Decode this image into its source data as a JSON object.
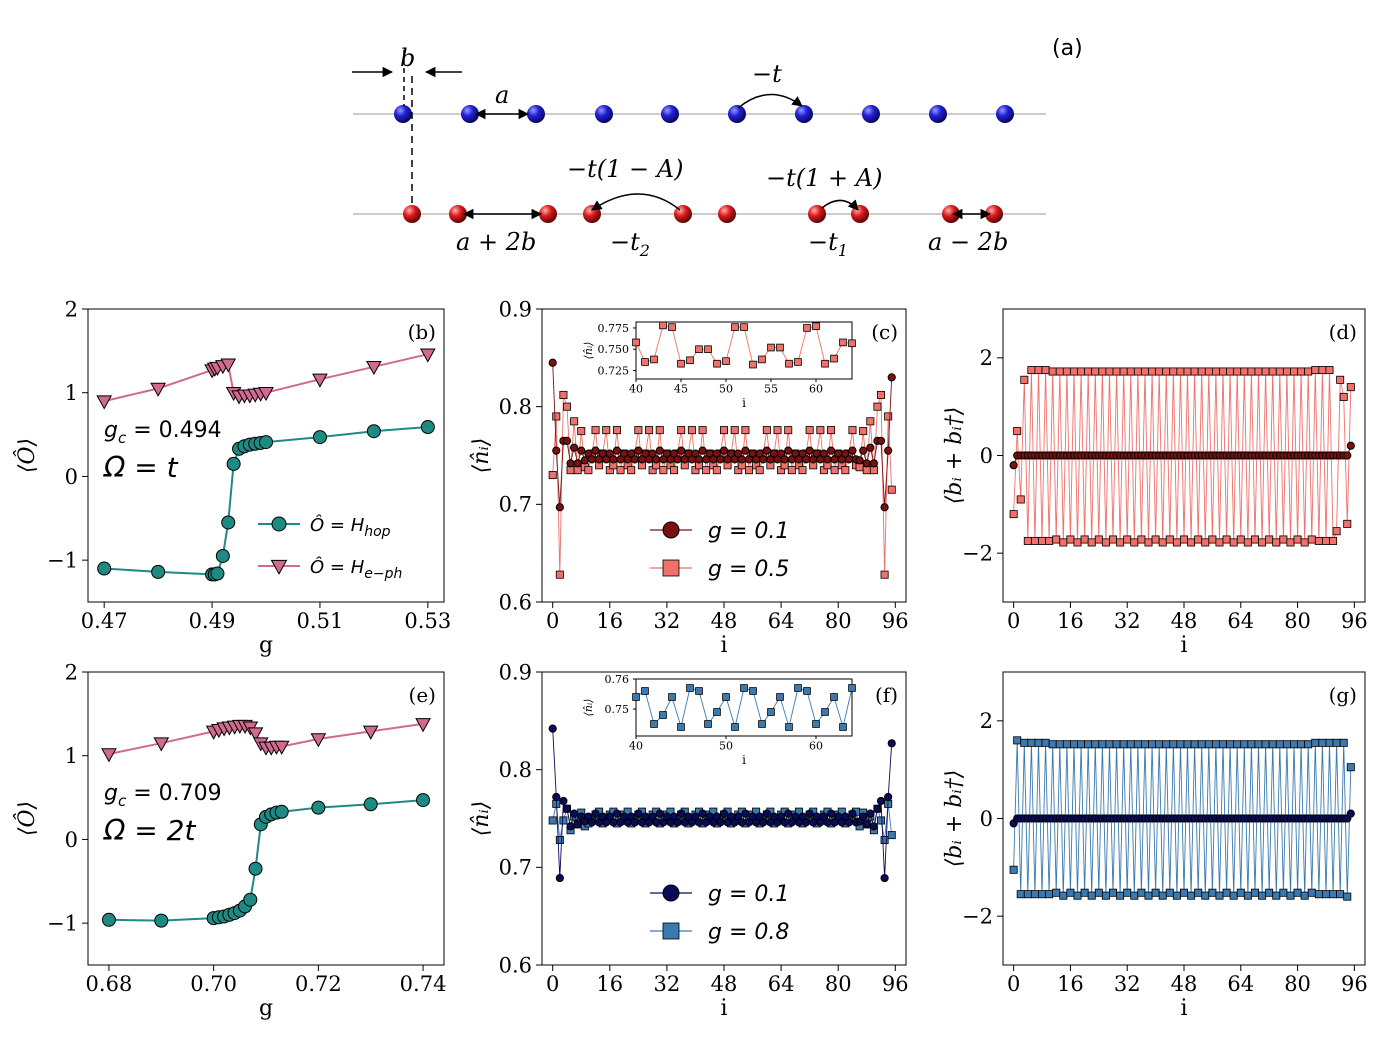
{
  "panel_a": {
    "label": "(a)",
    "upper_chain": {
      "b_label": "b",
      "a_label": "a",
      "hop_label": "−t"
    },
    "lower_chain": {
      "spacing_wide_label": "a + 2b",
      "spacing_narrow_label": "a − 2b",
      "hop_weak_label": "−t(1 − A)",
      "hop_weak_sub": "−t",
      "hop_weak_sub_index": "2",
      "hop_strong_label": "−t(1 + A)",
      "hop_strong_sub": "−t",
      "hop_strong_sub_index": "1"
    },
    "colors": {
      "upper": "#1a1acc",
      "lower": "#d41a1a"
    }
  },
  "colors": {
    "teal": "#1f8a82",
    "pink": "#d06a90",
    "darkred": "#7a1010",
    "salmon": "#f0706a",
    "navy": "#0a0a5a",
    "steel": "#3a7ab0"
  },
  "chart_data": [
    {
      "id": "b",
      "type": "line",
      "panel_label": "(b)",
      "xlabel": "g",
      "ylabel": "⟨Ô⟩",
      "xlim": [
        0.467,
        0.533
      ],
      "ylim": [
        -1.5,
        2
      ],
      "xticks": [
        0.47,
        0.49,
        0.51,
        0.53
      ],
      "xtick_labels": [
        "0.47",
        "0.49",
        "0.51",
        "0.53"
      ],
      "yticks": [
        -1,
        0,
        1,
        2
      ],
      "ytick_labels": [
        "−1",
        "0",
        "1",
        "2"
      ],
      "annotation_1": "g_c = 0.494",
      "annotation_2": "Ω = t",
      "legend": [
        "Ô = H_hop",
        "Ô = H_e−ph"
      ],
      "series": [
        {
          "name": "Ô = H_hop",
          "marker": "circle",
          "color": "teal",
          "x": [
            0.47,
            0.48,
            0.49,
            0.4905,
            0.491,
            0.492,
            0.493,
            0.494,
            0.495,
            0.496,
            0.497,
            0.498,
            0.499,
            0.5,
            0.51,
            0.52,
            0.53
          ],
          "y": [
            -1.1,
            -1.14,
            -1.17,
            -1.17,
            -1.16,
            -0.95,
            -0.55,
            0.15,
            0.33,
            0.36,
            0.38,
            0.39,
            0.4,
            0.41,
            0.47,
            0.54,
            0.59
          ]
        },
        {
          "name": "Ô = H_e−ph",
          "marker": "triangle-down",
          "color": "pink",
          "x": [
            0.47,
            0.48,
            0.49,
            0.4905,
            0.491,
            0.492,
            0.493,
            0.494,
            0.495,
            0.496,
            0.497,
            0.498,
            0.499,
            0.5,
            0.51,
            0.52,
            0.53
          ],
          "y": [
            0.9,
            1.05,
            1.27,
            1.29,
            1.3,
            1.32,
            1.34,
            1.0,
            0.96,
            0.97,
            0.97,
            0.98,
            0.99,
            1.0,
            1.16,
            1.31,
            1.46
          ]
        }
      ]
    },
    {
      "id": "c",
      "type": "line",
      "panel_label": "(c)",
      "xlabel": "i",
      "ylabel": "⟨n̂ᵢ⟩",
      "xlim": [
        -3,
        99
      ],
      "ylim": [
        0.6,
        0.9
      ],
      "xticks": [
        0,
        16,
        32,
        48,
        64,
        80,
        96
      ],
      "xtick_labels": [
        "0",
        "16",
        "32",
        "48",
        "64",
        "80",
        "96"
      ],
      "yticks": [
        0.6,
        0.7,
        0.8,
        0.9
      ],
      "ytick_labels": [
        "0.6",
        "0.7",
        "0.8",
        "0.9"
      ],
      "legend": [
        "g = 0.1",
        "g = 0.5"
      ],
      "series": [
        {
          "name": "g = 0.1",
          "marker": "circle",
          "color": "darkred",
          "model": "dimer_small",
          "edge": [
            0.845,
            0.755,
            0.697,
            0.765,
            0.765,
            0.742,
            0.758,
            0.742,
            0.755,
            0.745
          ]
        },
        {
          "name": "g = 0.5",
          "marker": "square",
          "color": "salmon",
          "model": "trimer",
          "edge": [
            0.73,
            0.79,
            0.628,
            0.812,
            0.8,
            0.735,
            0.785,
            0.735,
            0.775,
            0.738
          ]
        }
      ],
      "inset": {
        "ylabel": "⟨n̂ᵢ⟩",
        "xlabel": "i",
        "xlim": [
          40,
          64
        ],
        "ylim": [
          0.715,
          0.782
        ],
        "xticks": [
          40,
          45,
          50,
          55,
          60
        ],
        "xtick_labels": [
          "40",
          "45",
          "50",
          "55",
          "60"
        ],
        "yticks": [
          0.725,
          0.75,
          0.775
        ],
        "ytick_labels": [
          "0.725",
          "0.750",
          "0.775"
        ],
        "x": [
          40,
          41,
          42,
          43,
          44,
          45,
          46,
          47,
          48,
          49,
          50,
          51,
          52,
          53,
          54,
          55,
          56,
          57,
          58,
          59,
          60,
          61,
          62,
          63,
          64
        ],
        "y": [
          0.758,
          0.735,
          0.738,
          0.778,
          0.776,
          0.733,
          0.737,
          0.75,
          0.75,
          0.733,
          0.736,
          0.776,
          0.776,
          0.732,
          0.738,
          0.752,
          0.752,
          0.733,
          0.735,
          0.775,
          0.777,
          0.733,
          0.739,
          0.758,
          0.757
        ]
      }
    },
    {
      "id": "d",
      "type": "line",
      "panel_label": "(d)",
      "xlabel": "i",
      "ylabel": "⟨bᵢ + bᵢ†⟩",
      "xlim": [
        -3,
        99
      ],
      "ylim": [
        -3,
        3
      ],
      "xticks": [
        0,
        16,
        32,
        48,
        64,
        80,
        96
      ],
      "xtick_labels": [
        "0",
        "16",
        "32",
        "48",
        "64",
        "80",
        "96"
      ],
      "yticks": [
        -2,
        0,
        2
      ],
      "ytick_labels": [
        "−2",
        "0",
        "2"
      ],
      "series": [
        {
          "name": "g = 0.1",
          "marker": "circle",
          "color": "darkred",
          "model": "zero",
          "start": -0.2,
          "end": 0.2
        },
        {
          "name": "g = 0.5",
          "marker": "square",
          "color": "salmon",
          "model": "alt",
          "amplitude": 1.75,
          "edge_start": [
            -1.2,
            0.5,
            -0.9,
            1.55
          ],
          "edge_end": [
            -1.55,
            1.55,
            1.2,
            -1.4,
            1.4
          ]
        }
      ]
    },
    {
      "id": "e",
      "type": "line",
      "panel_label": "(e)",
      "xlabel": "g",
      "ylabel": "⟨Ô⟩",
      "xlim": [
        0.676,
        0.744
      ],
      "ylim": [
        -1.5,
        2
      ],
      "xticks": [
        0.68,
        0.7,
        0.72,
        0.74
      ],
      "xtick_labels": [
        "0.68",
        "0.70",
        "0.72",
        "0.74"
      ],
      "yticks": [
        -1,
        0,
        1,
        2
      ],
      "ytick_labels": [
        "−1",
        "0",
        "1",
        "2"
      ],
      "annotation_1": "g_c = 0.709",
      "annotation_2": "Ω = 2t",
      "series": [
        {
          "name": "Ô = H_hop",
          "marker": "circle",
          "color": "teal",
          "x": [
            0.68,
            0.69,
            0.7,
            0.701,
            0.702,
            0.703,
            0.704,
            0.705,
            0.706,
            0.707,
            0.708,
            0.709,
            0.71,
            0.711,
            0.712,
            0.713,
            0.72,
            0.73,
            0.74
          ],
          "y": [
            -0.96,
            -0.97,
            -0.94,
            -0.93,
            -0.92,
            -0.9,
            -0.88,
            -0.85,
            -0.8,
            -0.72,
            -0.35,
            0.18,
            0.27,
            0.3,
            0.32,
            0.33,
            0.38,
            0.42,
            0.47
          ]
        },
        {
          "name": "Ô = H_e−ph",
          "marker": "triangle-down",
          "color": "pink",
          "x": [
            0.68,
            0.69,
            0.7,
            0.701,
            0.702,
            0.703,
            0.704,
            0.705,
            0.706,
            0.707,
            0.708,
            0.709,
            0.71,
            0.711,
            0.712,
            0.713,
            0.72,
            0.73,
            0.74
          ],
          "y": [
            1.02,
            1.15,
            1.29,
            1.31,
            1.33,
            1.34,
            1.35,
            1.36,
            1.36,
            1.34,
            1.27,
            1.15,
            1.1,
            1.1,
            1.11,
            1.11,
            1.2,
            1.29,
            1.38
          ]
        }
      ]
    },
    {
      "id": "f",
      "type": "line",
      "panel_label": "(f)",
      "xlabel": "i",
      "ylabel": "⟨n̂ᵢ⟩",
      "xlim": [
        -3,
        99
      ],
      "ylim": [
        0.6,
        0.9
      ],
      "xticks": [
        0,
        16,
        32,
        48,
        64,
        80,
        96
      ],
      "xtick_labels": [
        "0",
        "16",
        "32",
        "48",
        "64",
        "80",
        "96"
      ],
      "yticks": [
        0.6,
        0.7,
        0.8,
        0.9
      ],
      "ytick_labels": [
        "0.6",
        "0.7",
        "0.8",
        "0.9"
      ],
      "legend": [
        "g = 0.1",
        "g = 0.8"
      ],
      "series": [
        {
          "name": "g = 0.1",
          "marker": "circle",
          "color": "navy",
          "model": "dimer_small",
          "edge": [
            0.842,
            0.772,
            0.689,
            0.768,
            0.76,
            0.742,
            0.755,
            0.744,
            0.752,
            0.747
          ]
        },
        {
          "name": "g = 0.8",
          "marker": "square",
          "color": "steel",
          "model": "quad",
          "edge": [
            0.748,
            0.765,
            0.728,
            0.748,
            0.76,
            0.738,
            0.752,
            0.744,
            0.756,
            0.742
          ]
        }
      ],
      "inset": {
        "ylabel": "⟨n̂ᵢ⟩",
        "xlabel": "i",
        "xlim": [
          40,
          64
        ],
        "ylim": [
          0.741,
          0.76
        ],
        "xticks": [
          40,
          50,
          60
        ],
        "xtick_labels": [
          "40",
          "50",
          "60"
        ],
        "yticks": [
          0.75,
          0.76
        ],
        "ytick_labels": [
          "0.75",
          "0.76"
        ],
        "x": [
          40,
          41,
          42,
          43,
          44,
          45,
          46,
          47,
          48,
          49,
          50,
          51,
          52,
          53,
          54,
          55,
          56,
          57,
          58,
          59,
          60,
          61,
          62,
          63,
          64
        ],
        "y": [
          0.754,
          0.756,
          0.745,
          0.748,
          0.754,
          0.744,
          0.757,
          0.756,
          0.745,
          0.749,
          0.754,
          0.744,
          0.757,
          0.756,
          0.745,
          0.749,
          0.754,
          0.744,
          0.757,
          0.756,
          0.745,
          0.749,
          0.754,
          0.744,
          0.757
        ]
      }
    },
    {
      "id": "g",
      "type": "line",
      "panel_label": "(g)",
      "xlabel": "i",
      "ylabel": "⟨bᵢ + bᵢ†⟩",
      "xlim": [
        -3,
        99
      ],
      "ylim": [
        -3,
        3
      ],
      "xticks": [
        0,
        16,
        32,
        48,
        64,
        80,
        96
      ],
      "xtick_labels": [
        "0",
        "16",
        "32",
        "48",
        "64",
        "80",
        "96"
      ],
      "yticks": [
        -2,
        0,
        2
      ],
      "ytick_labels": [
        "−2",
        "0",
        "2"
      ],
      "series": [
        {
          "name": "g = 0.1",
          "marker": "circle",
          "color": "navy",
          "model": "zero",
          "start": -0.1,
          "end": 0.1
        },
        {
          "name": "g = 0.8",
          "marker": "square",
          "color": "steel",
          "model": "alt",
          "amplitude": 1.55,
          "edge_start": [
            -1.05,
            1.6
          ],
          "edge_end": [
            1.55,
            -1.6,
            1.05
          ]
        }
      ]
    }
  ]
}
